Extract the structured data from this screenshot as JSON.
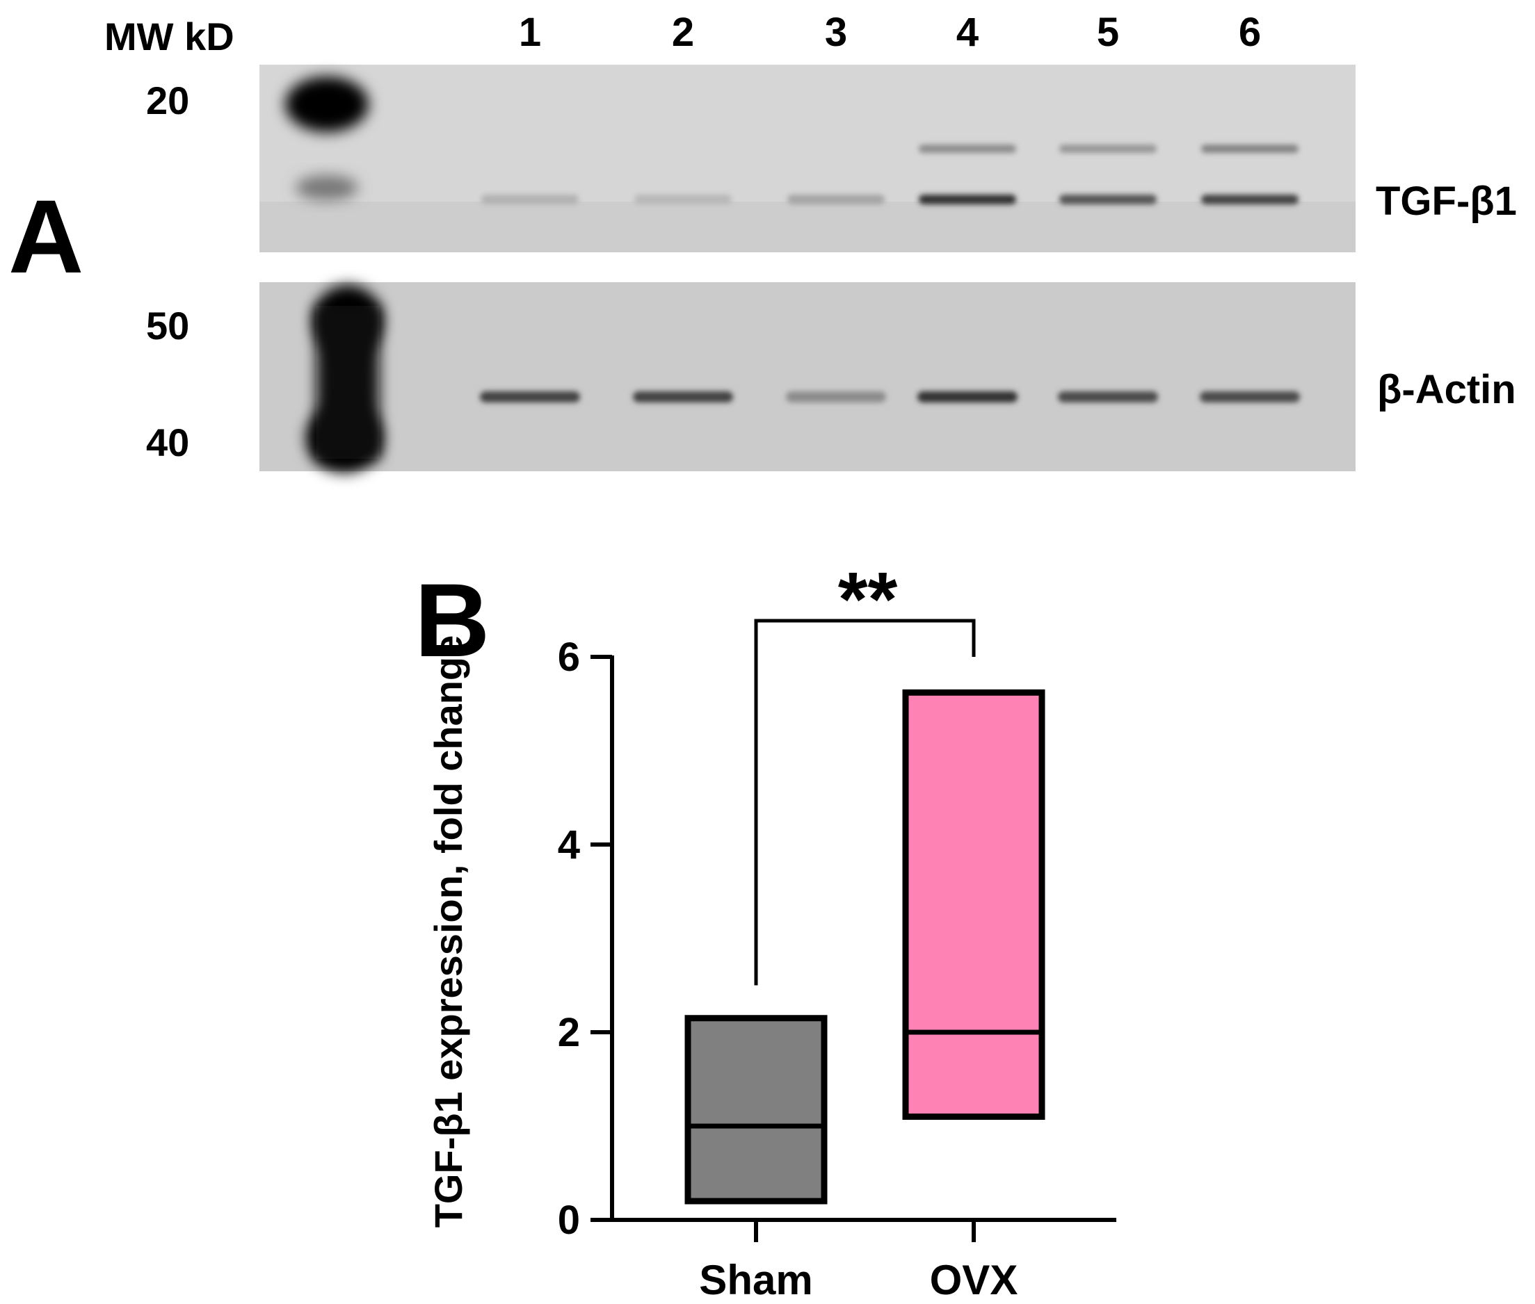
{
  "panel_a": {
    "label": "A",
    "mw_header": "MW kD",
    "lanes": [
      "1",
      "2",
      "3",
      "4",
      "5",
      "6"
    ],
    "blots": [
      {
        "target": "TGF-β1",
        "mw_markers": [
          "20"
        ],
        "band_intensity": [
          0.15,
          0.12,
          0.22,
          0.85,
          0.65,
          0.75
        ],
        "upper_band_intensity": [
          0.0,
          0.0,
          0.0,
          0.35,
          0.3,
          0.4
        ]
      },
      {
        "target": "β-Actin",
        "mw_markers": [
          "50",
          "40"
        ],
        "band_intensity": [
          0.75,
          0.75,
          0.35,
          0.85,
          0.7,
          0.7
        ]
      }
    ]
  },
  "panel_b": {
    "label": "B",
    "significance": "**",
    "chart_data": {
      "type": "box",
      "title": "",
      "ylabel": "TGF-β1 expression, fold change",
      "xlabel": "",
      "ylim": [
        0,
        6
      ],
      "yticks": [
        "0",
        "2",
        "4",
        "6"
      ],
      "grid": false,
      "legend": "none",
      "categories": [
        "Sham",
        "OVX"
      ],
      "series": [
        {
          "category": "Sham",
          "min": 0.2,
          "median": 1.0,
          "max": 2.15,
          "color": "#808080"
        },
        {
          "category": "OVX",
          "min": 1.1,
          "median": 2.0,
          "max": 5.62,
          "color": "#FF82B4"
        }
      ],
      "significance_bracket": {
        "between": [
          "Sham",
          "OVX"
        ],
        "label": "**"
      }
    }
  }
}
